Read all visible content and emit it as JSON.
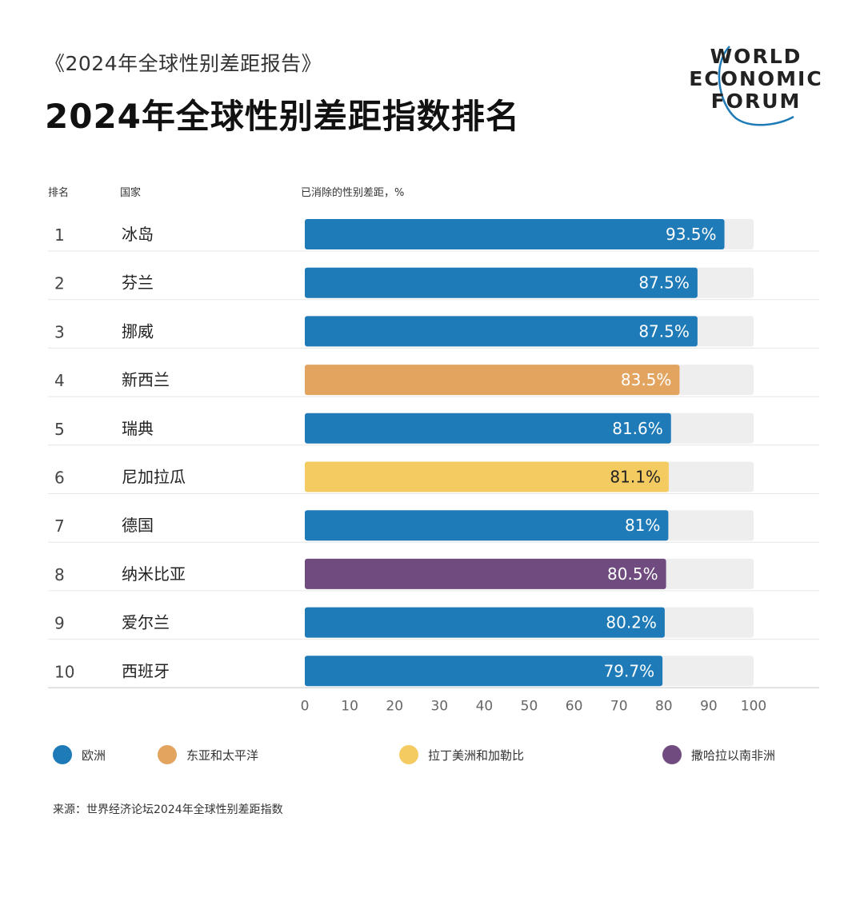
{
  "header": {
    "subtitle": "《2024年全球性别差距报告》",
    "title": "2024年全球性别差距指数排名"
  },
  "logo": {
    "line1": "WORLD",
    "line2": "ECONOMIC",
    "line3": "FORUM",
    "arc_color": "#1f7bb8"
  },
  "columns": {
    "rank": "排名",
    "country": "国家",
    "value": "已消除的性别差距，%"
  },
  "colors": {
    "europe": "#1f7bb8",
    "east_asia_pacific": "#e2a45f",
    "latin_america": "#f3cb60",
    "sub_saharan_africa": "#6f4b7f",
    "track": "#eeeeee"
  },
  "legend": [
    {
      "key": "europe",
      "label": "欧洲"
    },
    {
      "key": "east_asia_pacific",
      "label": "东亚和太平洋"
    },
    {
      "key": "latin_america",
      "label": "拉丁美洲和加勒比"
    },
    {
      "key": "sub_saharan_africa",
      "label": "撒哈拉以南非洲"
    }
  ],
  "source": "来源：世界经济论坛2024年全球性别差距指数",
  "chart_data": {
    "type": "bar",
    "orientation": "horizontal",
    "xlim": [
      0,
      100
    ],
    "ticks": [
      "0",
      "10",
      "20",
      "30",
      "40",
      "50",
      "60",
      "70",
      "80",
      "90",
      "100"
    ],
    "grid": false,
    "legend_position": "bottom",
    "rows": [
      {
        "rank": "1",
        "country": "冰岛",
        "value": 93.5,
        "label": "93.5%",
        "region": "europe"
      },
      {
        "rank": "2",
        "country": "芬兰",
        "value": 87.5,
        "label": "87.5%",
        "region": "europe"
      },
      {
        "rank": "3",
        "country": "挪威",
        "value": 87.5,
        "label": "87.5%",
        "region": "europe"
      },
      {
        "rank": "4",
        "country": "新西兰",
        "value": 83.5,
        "label": "83.5%",
        "region": "east_asia_pacific"
      },
      {
        "rank": "5",
        "country": "瑞典",
        "value": 81.6,
        "label": "81.6%",
        "region": "europe"
      },
      {
        "rank": "6",
        "country": "尼加拉瓜",
        "value": 81.1,
        "label": "81.1%",
        "region": "latin_america"
      },
      {
        "rank": "7",
        "country": "德国",
        "value": 81,
        "label": "81%",
        "region": "europe"
      },
      {
        "rank": "8",
        "country": "纳米比亚",
        "value": 80.5,
        "label": "80.5%",
        "region": "sub_saharan_africa"
      },
      {
        "rank": "9",
        "country": "爱尔兰",
        "value": 80.2,
        "label": "80.2%",
        "region": "europe"
      },
      {
        "rank": "10",
        "country": "西班牙",
        "value": 79.7,
        "label": "79.7%",
        "region": "europe"
      }
    ]
  }
}
